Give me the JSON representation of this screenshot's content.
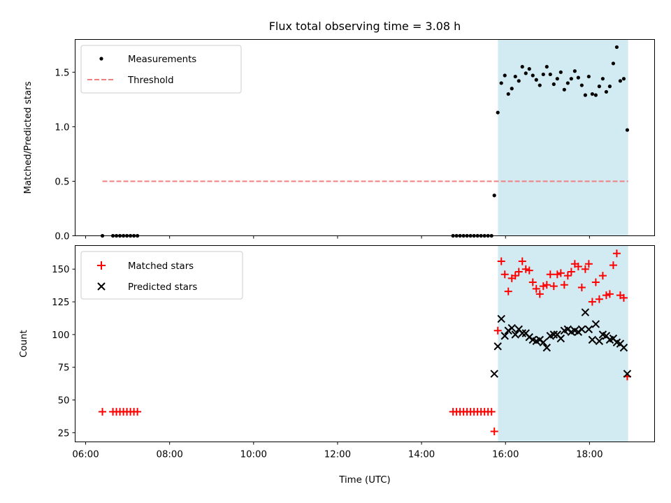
{
  "chart_data": {
    "title": "Flux total observing time = 3.08 h",
    "xlabel": "Time (UTC)",
    "x_ticks": [
      "06:00",
      "08:00",
      "10:00",
      "12:00",
      "14:00",
      "16:00",
      "18:00"
    ],
    "x_tick_hours": [
      6,
      8,
      10,
      12,
      14,
      16,
      18
    ],
    "xlim_hours": [
      5.75,
      19.55
    ],
    "shaded_interval_hours": [
      15.82,
      18.92
    ],
    "shade_color": "#add8e6",
    "panels": [
      {
        "type": "scatter",
        "ylabel": "Matched/Predicted stars",
        "ylim": [
          0,
          1.8
        ],
        "y_ticks": [
          "0.0",
          "0.5",
          "1.0",
          "1.5"
        ],
        "y_tick_values": [
          0,
          0.5,
          1.0,
          1.5
        ],
        "legend_position": "upper-left",
        "threshold": {
          "name": "Threshold",
          "value": 0.5,
          "x_range_hours": [
            6.4,
            18.92
          ],
          "color": "#f08080"
        },
        "series": [
          {
            "name": "Measurements",
            "color": "#000000",
            "marker": "dot",
            "points": [
              [
                "06:24",
                0
              ],
              [
                "06:39",
                0
              ],
              [
                "06:44",
                0
              ],
              [
                "06:49",
                0
              ],
              [
                "06:54",
                0
              ],
              [
                "06:59",
                0
              ],
              [
                "07:04",
                0
              ],
              [
                "07:09",
                0
              ],
              [
                "07:14",
                0
              ],
              [
                "14:45",
                0
              ],
              [
                "14:50",
                0
              ],
              [
                "14:55",
                0
              ],
              [
                "15:00",
                0
              ],
              [
                "15:05",
                0
              ],
              [
                "15:10",
                0
              ],
              [
                "15:15",
                0
              ],
              [
                "15:20",
                0
              ],
              [
                "15:25",
                0
              ],
              [
                "15:30",
                0
              ],
              [
                "15:35",
                0
              ],
              [
                "15:40",
                0
              ],
              [
                "15:44",
                0.37
              ],
              [
                "15:49",
                1.13
              ],
              [
                "15:54",
                1.4
              ],
              [
                "15:59",
                1.47
              ],
              [
                "16:04",
                1.3
              ],
              [
                "16:09",
                1.35
              ],
              [
                "16:14",
                1.46
              ],
              [
                "16:19",
                1.42
              ],
              [
                "16:24",
                1.55
              ],
              [
                "16:29",
                1.49
              ],
              [
                "16:34",
                1.53
              ],
              [
                "16:39",
                1.47
              ],
              [
                "16:44",
                1.43
              ],
              [
                "16:49",
                1.38
              ],
              [
                "16:54",
                1.48
              ],
              [
                "16:59",
                1.55
              ],
              [
                "17:04",
                1.48
              ],
              [
                "17:09",
                1.39
              ],
              [
                "17:14",
                1.44
              ],
              [
                "17:19",
                1.5
              ],
              [
                "17:24",
                1.34
              ],
              [
                "17:29",
                1.4
              ],
              [
                "17:34",
                1.44
              ],
              [
                "17:39",
                1.51
              ],
              [
                "17:44",
                1.45
              ],
              [
                "17:49",
                1.38
              ],
              [
                "17:54",
                1.29
              ],
              [
                "17:59",
                1.46
              ],
              [
                "18:04",
                1.3
              ],
              [
                "18:09",
                1.29
              ],
              [
                "18:14",
                1.37
              ],
              [
                "18:19",
                1.44
              ],
              [
                "18:24",
                1.32
              ],
              [
                "18:29",
                1.37
              ],
              [
                "18:34",
                1.58
              ],
              [
                "18:39",
                1.73
              ],
              [
                "18:44",
                1.42
              ],
              [
                "18:49",
                1.44
              ],
              [
                "18:54",
                0.97
              ]
            ]
          }
        ]
      },
      {
        "type": "scatter",
        "ylabel": "Count",
        "ylim": [
          18,
          168
        ],
        "y_ticks": [
          "25",
          "50",
          "75",
          "100",
          "125",
          "150"
        ],
        "y_tick_values": [
          25,
          50,
          75,
          100,
          125,
          150
        ],
        "legend_position": "upper-left",
        "series": [
          {
            "name": "Matched stars",
            "color": "#ff0000",
            "marker": "plus",
            "points": [
              [
                "06:24",
                41
              ],
              [
                "06:39",
                41
              ],
              [
                "06:44",
                41
              ],
              [
                "06:49",
                41
              ],
              [
                "06:54",
                41
              ],
              [
                "06:59",
                41
              ],
              [
                "07:04",
                41
              ],
              [
                "07:09",
                41
              ],
              [
                "07:14",
                41
              ],
              [
                "14:45",
                41
              ],
              [
                "14:50",
                41
              ],
              [
                "14:55",
                41
              ],
              [
                "15:00",
                41
              ],
              [
                "15:05",
                41
              ],
              [
                "15:10",
                41
              ],
              [
                "15:15",
                41
              ],
              [
                "15:20",
                41
              ],
              [
                "15:25",
                41
              ],
              [
                "15:30",
                41
              ],
              [
                "15:35",
                41
              ],
              [
                "15:40",
                41
              ],
              [
                "15:44",
                26
              ],
              [
                "15:49",
                103
              ],
              [
                "15:54",
                156
              ],
              [
                "15:59",
                146
              ],
              [
                "16:04",
                133
              ],
              [
                "16:09",
                143
              ],
              [
                "16:14",
                145
              ],
              [
                "16:19",
                148
              ],
              [
                "16:24",
                156
              ],
              [
                "16:29",
                150
              ],
              [
                "16:34",
                149
              ],
              [
                "16:39",
                140
              ],
              [
                "16:44",
                135
              ],
              [
                "16:49",
                131
              ],
              [
                "16:54",
                137
              ],
              [
                "16:59",
                138
              ],
              [
                "17:04",
                146
              ],
              [
                "17:09",
                137
              ],
              [
                "17:14",
                146
              ],
              [
                "17:19",
                147
              ],
              [
                "17:24",
                138
              ],
              [
                "17:29",
                145
              ],
              [
                "17:34",
                148
              ],
              [
                "17:39",
                154
              ],
              [
                "17:44",
                152
              ],
              [
                "17:49",
                136
              ],
              [
                "17:54",
                150
              ],
              [
                "17:59",
                154
              ],
              [
                "18:04",
                125
              ],
              [
                "18:09",
                140
              ],
              [
                "18:14",
                127
              ],
              [
                "18:19",
                145
              ],
              [
                "18:24",
                130
              ],
              [
                "18:29",
                131
              ],
              [
                "18:34",
                153
              ],
              [
                "18:39",
                162
              ],
              [
                "18:44",
                130
              ],
              [
                "18:49",
                128
              ],
              [
                "18:54",
                68
              ]
            ]
          },
          {
            "name": "Predicted stars",
            "color": "#000000",
            "marker": "x",
            "points": [
              [
                "15:44",
                70
              ],
              [
                "15:49",
                91
              ],
              [
                "15:54",
                112
              ],
              [
                "15:59",
                99
              ],
              [
                "16:04",
                103
              ],
              [
                "16:09",
                105
              ],
              [
                "16:14",
                100
              ],
              [
                "16:19",
                104
              ],
              [
                "16:24",
                101
              ],
              [
                "16:29",
                101
              ],
              [
                "16:34",
                98
              ],
              [
                "16:39",
                96
              ],
              [
                "16:44",
                95
              ],
              [
                "16:49",
                96
              ],
              [
                "16:54",
                94
              ],
              [
                "16:59",
                90
              ],
              [
                "17:04",
                99
              ],
              [
                "17:09",
                100
              ],
              [
                "17:14",
                100
              ],
              [
                "17:19",
                97
              ],
              [
                "17:24",
                103
              ],
              [
                "17:29",
                104
              ],
              [
                "17:34",
                102
              ],
              [
                "17:39",
                103
              ],
              [
                "17:44",
                102
              ],
              [
                "17:49",
                104
              ],
              [
                "17:54",
                117
              ],
              [
                "17:59",
                104
              ],
              [
                "18:04",
                96
              ],
              [
                "18:09",
                108
              ],
              [
                "18:14",
                95
              ],
              [
                "18:19",
                100
              ],
              [
                "18:24",
                99
              ],
              [
                "18:29",
                96
              ],
              [
                "18:34",
                97
              ],
              [
                "18:39",
                94
              ],
              [
                "18:44",
                93
              ],
              [
                "18:49",
                90
              ],
              [
                "18:54",
                70
              ]
            ]
          }
        ]
      }
    ]
  }
}
